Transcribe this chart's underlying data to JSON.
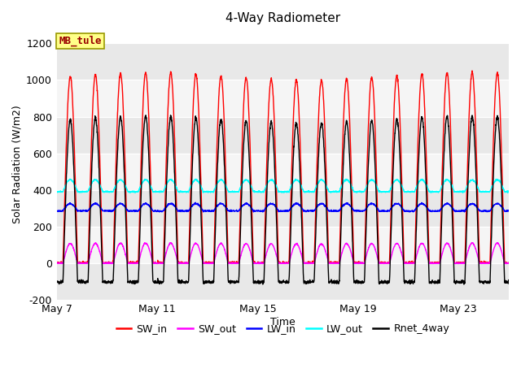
{
  "title": "4-Way Radiometer",
  "xlabel": "Time",
  "ylabel": "Solar Radiation (W/m2)",
  "ylim": [
    -200,
    1280
  ],
  "yticks": [
    -200,
    0,
    200,
    400,
    600,
    800,
    1000,
    1200
  ],
  "station_label": "MB_tule",
  "legend": [
    "SW_in",
    "SW_out",
    "LW_in",
    "LW_out",
    "Rnet_4way"
  ],
  "colors": {
    "SW_in": "#ff0000",
    "SW_out": "#ff00ff",
    "LW_in": "#0000ff",
    "LW_out": "#00ffff",
    "Rnet_4way": "#000000"
  },
  "x_tick_labels": [
    "May 7",
    "May 11",
    "May 15",
    "May 19",
    "May 23"
  ],
  "days": 18,
  "points_per_day": 144,
  "SW_in_peak": 1020,
  "LW_in_base": 285,
  "LW_in_day_boost": 40,
  "LW_out_base": 390,
  "LW_out_day_boost": 65,
  "band_color_even": "#e8e8e8",
  "band_color_odd": "#f5f5f5",
  "linewidth": 1.0,
  "figsize": [
    6.4,
    4.8
  ],
  "dpi": 100
}
